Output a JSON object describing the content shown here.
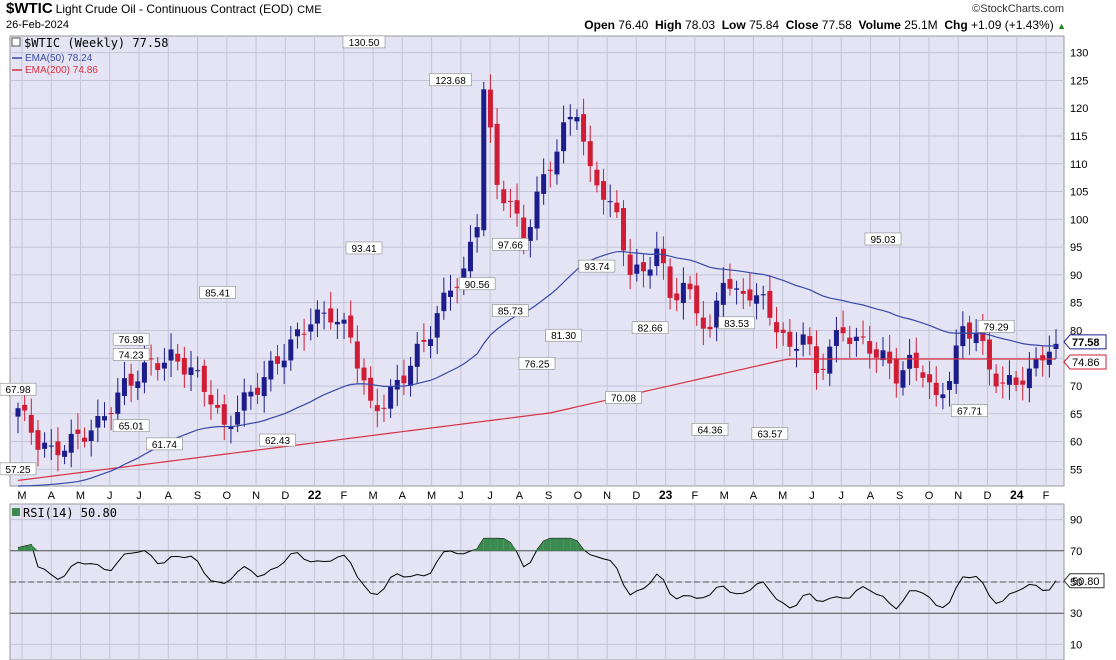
{
  "header": {
    "symbol": "$WTIC",
    "description": "Light Crude Oil - Continuous Contract (EOD)",
    "exchange": "CME",
    "date": "26-Feb-2024",
    "brand": "©StockCharts.com",
    "open_label": "Open",
    "open": "76.40",
    "high_label": "High",
    "high": "78.03",
    "low_label": "Low",
    "low": "75.84",
    "close_label": "Close",
    "close": "77.58",
    "volume_label": "Volume",
    "volume": "25.1M",
    "chg_label": "Chg",
    "chg": "+1.09 (+1.43%)",
    "chg_arrow": "▲"
  },
  "legend": {
    "main": "$WTIC (Weekly) 77.58",
    "ema50": "EMA(50) 78.24",
    "ema200": "EMA(200) 74.86",
    "rsi": "RSI(14) 50.80"
  },
  "colors": {
    "panel_bg": "#e4e4f4",
    "grid": "#c4c4d8",
    "up": "#1c1c8a",
    "down": "#d01c34",
    "ema50": "#3848a8",
    "ema200": "#d83040",
    "rsi_line": "#000000",
    "rsi_fill": "#3c8a50"
  },
  "chart_data": [
    {
      "type": "candlestick",
      "title": "$WTIC (Weekly) 77.58",
      "y_ticks": [
        55,
        60,
        65,
        70,
        75,
        80,
        85,
        90,
        95,
        100,
        105,
        110,
        115,
        120,
        125,
        130
      ],
      "ylim": [
        52,
        133
      ],
      "x_ticks": [
        "M",
        "A",
        "M",
        "J",
        "J",
        "A",
        "S",
        "O",
        "N",
        "D",
        "22",
        "F",
        "M",
        "A",
        "M",
        "J",
        "J",
        "A",
        "S",
        "O",
        "N",
        "D",
        "23",
        "F",
        "M",
        "A",
        "M",
        "J",
        "J",
        "A",
        "S",
        "O",
        "N",
        "D",
        "24",
        "F"
      ],
      "series": [
        {
          "name": "EMA(50)",
          "last": 78.24
        },
        {
          "name": "EMA(200)",
          "last": 74.86
        }
      ],
      "annotations": [
        {
          "label": "67.98",
          "x": "2021-03",
          "y": 67.98
        },
        {
          "label": "57.25",
          "x": "2021-03",
          "y": 57.25
        },
        {
          "label": "76.98",
          "x": "2021-07",
          "y": 76.98
        },
        {
          "label": "74.23",
          "x": "2021-07",
          "y": 74.23
        },
        {
          "label": "65.01",
          "x": "2021-07",
          "y": 65.01
        },
        {
          "label": "61.74",
          "x": "2021-08",
          "y": 61.74
        },
        {
          "label": "85.41",
          "x": "2021-10",
          "y": 85.41
        },
        {
          "label": "62.43",
          "x": "2021-12",
          "y": 62.43
        },
        {
          "label": "130.50",
          "x": "2022-03",
          "y": 130.5
        },
        {
          "label": "93.41",
          "x": "2022-03",
          "y": 93.41
        },
        {
          "label": "123.68",
          "x": "2022-06",
          "y": 123.68
        },
        {
          "label": "90.56",
          "x": "2022-07",
          "y": 90.56
        },
        {
          "label": "97.66",
          "x": "2022-08",
          "y": 97.66
        },
        {
          "label": "85.73",
          "x": "2022-08",
          "y": 85.73
        },
        {
          "label": "93.74",
          "x": "2022-11",
          "y": 93.74
        },
        {
          "label": "81.30",
          "x": "2022-10",
          "y": 81.3
        },
        {
          "label": "76.25",
          "x": "2022-09",
          "y": 76.25
        },
        {
          "label": "70.08",
          "x": "2022-12",
          "y": 70.08
        },
        {
          "label": "82.66",
          "x": "2023-01",
          "y": 82.66
        },
        {
          "label": "64.36",
          "x": "2023-03",
          "y": 64.36
        },
        {
          "label": "83.53",
          "x": "2023-04",
          "y": 83.53
        },
        {
          "label": "63.57",
          "x": "2023-05",
          "y": 63.57
        },
        {
          "label": "95.03",
          "x": "2023-09",
          "y": 95.03
        },
        {
          "label": "67.71",
          "x": "2023-12",
          "y": 67.71
        },
        {
          "label": "79.29",
          "x": "2024-01",
          "y": 79.29
        }
      ],
      "price_labels": [
        {
          "label": "77.58",
          "y": 77.58
        },
        {
          "label": "74.86",
          "y": 74.86
        }
      ],
      "grid": true
    },
    {
      "type": "line",
      "title": "RSI(14) 50.80",
      "y_ticks": [
        10,
        30,
        50,
        70,
        90
      ],
      "ylim": [
        0,
        100
      ],
      "reference_lines": [
        30,
        50,
        70
      ],
      "last": 50.8,
      "grid": true
    }
  ]
}
